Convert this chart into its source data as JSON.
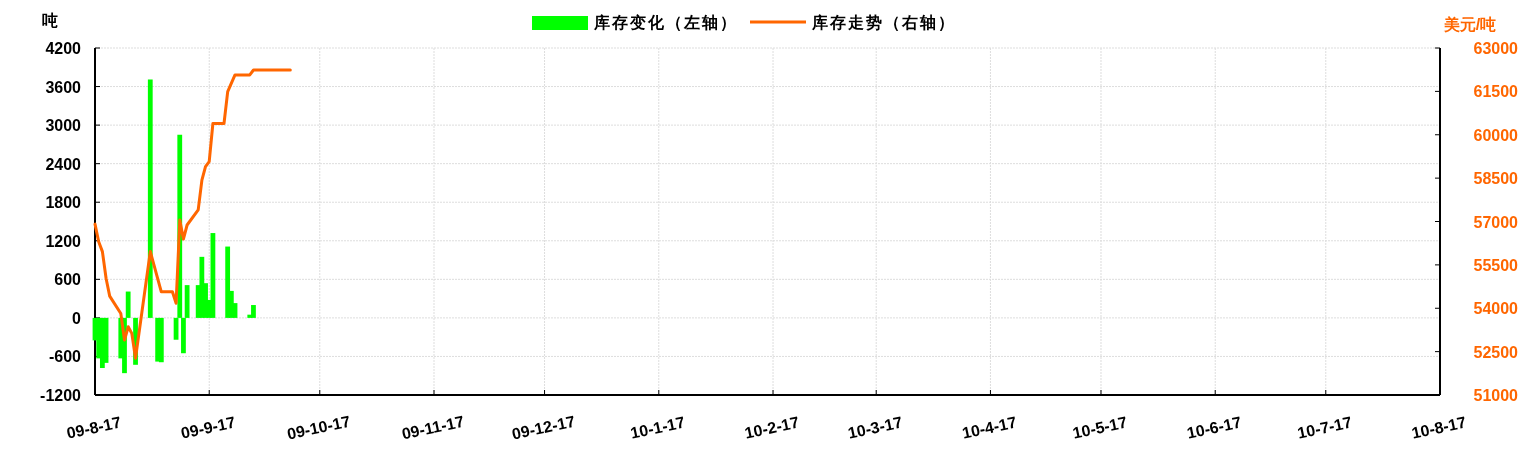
{
  "chart_data": {
    "type": "bar",
    "ylabel": "吨",
    "y2label": "美元/吨",
    "legend": "top",
    "grid": true,
    "xlim": [
      "2009-08-17",
      "2010-08-17"
    ],
    "xticks": [
      {
        "value": "2009-08-17",
        "label": "09-8-17"
      },
      {
        "value": "2009-09-17",
        "label": "09-9-17"
      },
      {
        "value": "2009-10-17",
        "label": "09-10-17"
      },
      {
        "value": "2009-11-17",
        "label": "09-11-17"
      },
      {
        "value": "2009-12-17",
        "label": "09-12-17"
      },
      {
        "value": "2010-01-17",
        "label": "10-1-17"
      },
      {
        "value": "2010-02-17",
        "label": "10-2-17"
      },
      {
        "value": "2010-03-17",
        "label": "10-3-17"
      },
      {
        "value": "2010-04-17",
        "label": "10-4-17"
      },
      {
        "value": "2010-05-17",
        "label": "10-5-17"
      },
      {
        "value": "2010-06-17",
        "label": "10-6-17"
      },
      {
        "value": "2010-07-17",
        "label": "10-7-17"
      },
      {
        "value": "2010-08-17",
        "label": "10-8-17"
      }
    ],
    "ylim": [
      -1200,
      4200
    ],
    "yticks": [
      -1200,
      -600,
      0,
      600,
      1200,
      1800,
      2400,
      3000,
      3600,
      4200
    ],
    "y2lim": [
      51000,
      63000
    ],
    "y2ticks": [
      51000,
      52500,
      54000,
      55500,
      57000,
      58500,
      60000,
      61500,
      63000
    ],
    "series": [
      {
        "name": "库存变化（左轴）",
        "color": "#00ff00",
        "x": [
          "2009-08-17",
          "2009-08-18",
          "2009-08-19",
          "2009-08-20",
          "2009-08-24",
          "2009-08-25",
          "2009-08-26",
          "2009-08-28",
          "2009-09-01",
          "2009-09-03",
          "2009-09-04",
          "2009-09-08",
          "2009-09-09",
          "2009-09-10",
          "2009-09-11",
          "2009-09-14",
          "2009-09-15",
          "2009-09-16",
          "2009-09-17",
          "2009-09-18",
          "2009-09-22",
          "2009-09-23",
          "2009-09-24",
          "2009-09-28",
          "2009-09-29"
        ],
        "values": [
          -350,
          -630,
          -780,
          -700,
          -630,
          -860,
          410,
          -730,
          3710,
          -680,
          -690,
          -340,
          2850,
          -550,
          510,
          510,
          950,
          540,
          280,
          1320,
          1110,
          420,
          230,
          50,
          200
        ]
      },
      {
        "name": "库存走势（右轴）",
        "type": "line",
        "axis": "y2",
        "color": "#ff6600",
        "x": [
          "2009-08-17",
          "2009-08-18",
          "2009-08-19",
          "2009-08-20",
          "2009-08-21",
          "2009-08-24",
          "2009-08-25",
          "2009-08-26",
          "2009-08-27",
          "2009-08-28",
          "2009-09-01",
          "2009-09-04",
          "2009-09-07",
          "2009-09-08",
          "2009-09-09",
          "2009-09-10",
          "2009-09-11",
          "2009-09-14",
          "2009-09-15",
          "2009-09-16",
          "2009-09-17",
          "2009-09-18",
          "2009-09-21",
          "2009-09-22",
          "2009-09-24",
          "2009-09-28",
          "2009-09-29",
          "2009-10-09"
        ],
        "values": [
          56910,
          56300,
          55960,
          55030,
          54420,
          53820,
          52900,
          53360,
          53130,
          52270,
          55960,
          54570,
          54570,
          54170,
          57050,
          56390,
          56880,
          57400,
          58430,
          58900,
          59070,
          60390,
          60390,
          61490,
          62070,
          62070,
          62240,
          62240
        ]
      }
    ]
  }
}
